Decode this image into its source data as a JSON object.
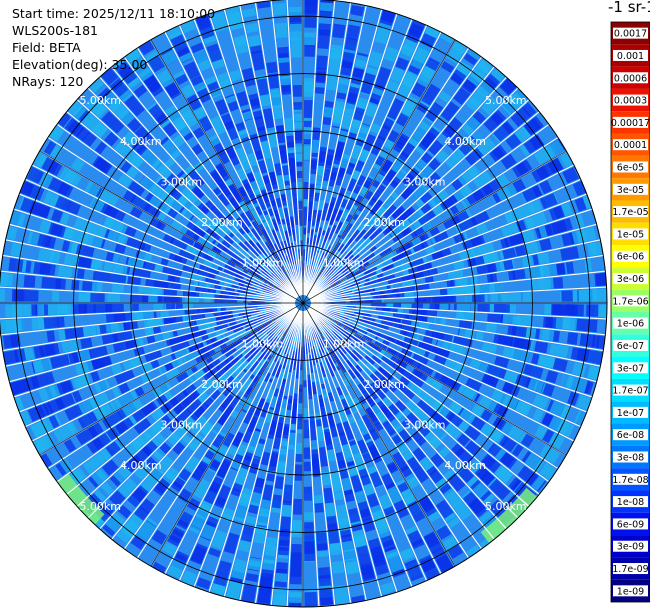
{
  "info": {
    "start_time": "Start time: 2025/12/11 18:10:00",
    "instrument": "WLS200s-181",
    "field": "Field: BETA",
    "elevation": "Elevation(deg): 35.00",
    "nrays": "NRays: 120"
  },
  "colorbar": {
    "unit_title": "-1 sr-1",
    "ticks": [
      "0.0017",
      "0.001",
      "0.0006",
      "0.0003",
      "0.00017",
      "0.0001",
      "6e-05",
      "3e-05",
      "1.7e-05",
      "1e-05",
      "6e-06",
      "3e-06",
      "1.7e-06",
      "1e-06",
      "6e-07",
      "3e-07",
      "1.7e-07",
      "1e-07",
      "6e-08",
      "3e-08",
      "1.7e-08",
      "1e-08",
      "6e-09",
      "3e-09",
      "1.7e-09",
      "1e-09"
    ],
    "colors": [
      "#8b0000",
      "#a80000",
      "#cc0000",
      "#ee1100",
      "#ff3300",
      "#ff5500",
      "#ff7700",
      "#ff9900",
      "#ffbb00",
      "#ffdd00",
      "#ffff00",
      "#ccff33",
      "#99ff66",
      "#66ffaa",
      "#33ffdd",
      "#00ffff",
      "#00ddff",
      "#00bbff",
      "#0099ff",
      "#0077ff",
      "#0055ff",
      "#0033ff",
      "#0011ee",
      "#0000cc",
      "#0000aa",
      "#000080"
    ]
  },
  "chart_data": {
    "type": "ppi-polar",
    "field": "BETA",
    "nrays": 120,
    "elevation_deg": 35.0,
    "max_range_km": 5.3,
    "range_rings_km": [
      1,
      2,
      3,
      4,
      5
    ],
    "ring_labels": [
      "1.00km",
      "2.00km",
      "3.00km",
      "4.00km",
      "5.00km"
    ],
    "dominant_value": "3e-08",
    "colors": {
      "background_fill": "#2b8cf0",
      "dark_patch": "#0a2fe8",
      "light_patch": "#20b4f0",
      "edge_green": "#7cf07a",
      "ray_gap": "#ffffff",
      "grid": "#000000"
    }
  }
}
